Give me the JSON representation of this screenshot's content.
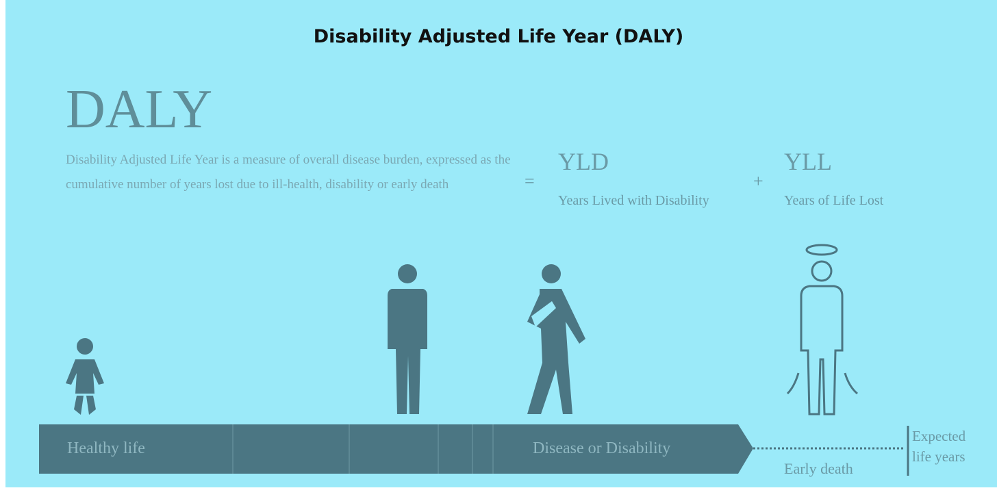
{
  "header": {
    "title": "Disability Adjusted Life Year (DALY)"
  },
  "definition": {
    "term": "DALY",
    "description": "Disability Adjusted Life Year is a measure of overall disease burden, expressed as the cumulative number of years lost due to ill-health, disability or early death"
  },
  "formula": {
    "equals": "=",
    "plus": "+",
    "terms": [
      {
        "abbr": "YLD",
        "label": "Years Lived with Disability"
      },
      {
        "abbr": "YLL",
        "label": "Years of Life Lost"
      }
    ]
  },
  "timeline": {
    "segments": [
      "Healthy life",
      "Disease or Disability",
      "Early death"
    ],
    "end": "Expected life years"
  }
}
